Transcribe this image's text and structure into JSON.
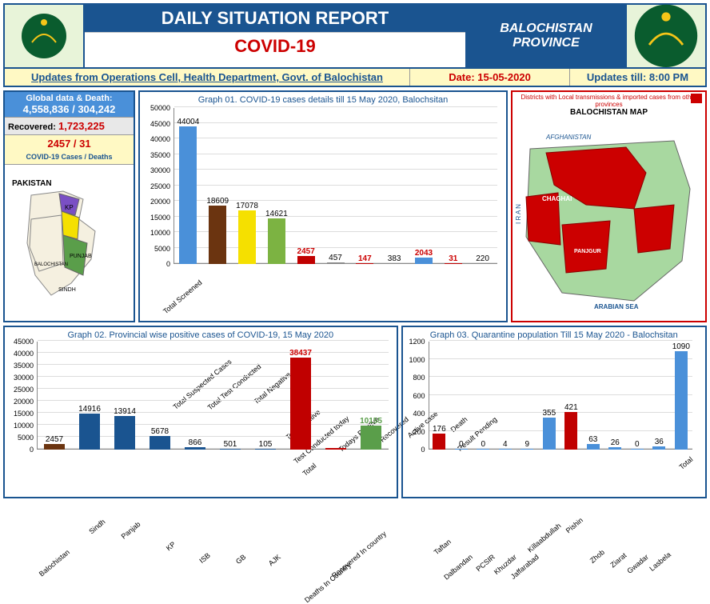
{
  "header": {
    "title": "DAILY SITUATION REPORT",
    "subtitle": "COVID-19",
    "province_l1": "BALOCHISTAN",
    "province_l2": "PROVINCE",
    "updates_from": "Updates from Operations Cell, Health Department, Govt. of Balochistan",
    "date_label": "Date: 15-05-2020",
    "updates_till": "Updates till: 8:00 PM"
  },
  "global": {
    "label": "Global data & Death:",
    "value": "4,558,836 / 304,242",
    "recovered_label": "Recovered:",
    "recovered_value": "1,723,225",
    "local_value": "2457 / 31",
    "local_label": "COVID-19 Cases / Deaths",
    "pak_label": "PAKISTAN"
  },
  "graph1": {
    "title": "Graph 01. COVID-19 cases details till 15 May 2020, Balochsitan",
    "y_max": 50000,
    "y_step": 5000,
    "categories": [
      "Total Screened",
      "Total Suspected Cases",
      "Total Test Conducted",
      "Total Negative",
      "Total Positive",
      "Test Conducted today",
      "Todays Positive",
      "Recovered",
      "Active case",
      "Death",
      "Result Pending"
    ],
    "values": [
      44004,
      18609,
      17078,
      14621,
      2457,
      457,
      147,
      383,
      2043,
      31,
      220
    ],
    "colors": [
      "#4a90d9",
      "#6b3410",
      "#f5e000",
      "#7cb342",
      "#c00000",
      "#888",
      "#c00000",
      "#888",
      "#4a90d9",
      "#c00000",
      "#888"
    ],
    "value_colors": [
      "#000",
      "#000",
      "#000",
      "#000",
      "#c00",
      "#000",
      "#c00",
      "#000",
      "#c00",
      "#c00",
      "#000"
    ]
  },
  "rmap": {
    "title": "Districts with Local transmissions & imported cases from other provinces",
    "label": "BALOCHISTAN MAP"
  },
  "graph2": {
    "title": "Graph 02. Provincial wise positive cases of COVID-19, 15 May  2020",
    "y_max": 45000,
    "y_step": 5000,
    "categories": [
      "Balochistan",
      "Sindh",
      "Panjab",
      "KP",
      "ISB",
      "GB",
      "AJK",
      "Total",
      "Deaths In Country",
      "Recovered In country"
    ],
    "values": [
      2457,
      14916,
      13914,
      5678,
      866,
      501,
      105,
      38437,
      803,
      10155
    ],
    "show_values": [
      2457,
      14916,
      13914,
      5678,
      866,
      501,
      105,
      38437,
      null,
      10155
    ],
    "colors": [
      "#6b3410",
      "#1a5490",
      "#1a5490",
      "#1a5490",
      "#1a5490",
      "#1a5490",
      "#1a5490",
      "#c00000",
      "#c00000",
      "#5a9e4a"
    ],
    "value_colors": [
      "#000",
      "#000",
      "#000",
      "#000",
      "#000",
      "#000",
      "#000",
      "#c00",
      "#000",
      "#5a9e4a"
    ]
  },
  "graph3": {
    "title": "Graph 03. Quarantine population Till 15 May 2020 - Balochsitan",
    "y_max": 1200,
    "y_step": 200,
    "categories": [
      "Taftan",
      "Dalbandan",
      "PCSIR",
      "Khuzdar",
      "Jaffarabad",
      "Killaabdullah",
      "Pishin",
      "Zhob",
      "Ziarat",
      "Gwadar",
      "Lasbela",
      "Total"
    ],
    "values": [
      176,
      0,
      0,
      4,
      9,
      355,
      421,
      63,
      26,
      0,
      36,
      1090
    ],
    "colors": [
      "#c00000",
      "#4a90d9",
      "#4a90d9",
      "#4a90d9",
      "#4a90d9",
      "#4a90d9",
      "#c00000",
      "#4a90d9",
      "#4a90d9",
      "#4a90d9",
      "#4a90d9",
      "#4a90d9"
    ]
  }
}
